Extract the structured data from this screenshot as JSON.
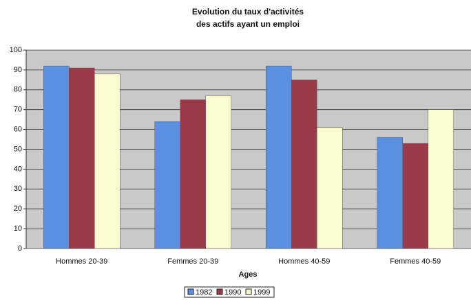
{
  "chart_data": {
    "type": "bar",
    "title": [
      "Evolution du taux d'activités",
      "des actifs ayant un emploi"
    ],
    "xlabel": "Ages",
    "categories": [
      "Hommes 20-39",
      "Femmes 20-39",
      "Hommes 40-59",
      "Femmes 40-59"
    ],
    "series": [
      {
        "name": "1982",
        "color": "#5b8fe0",
        "values": [
          92,
          64,
          92,
          56
        ]
      },
      {
        "name": "1990",
        "color": "#9b3b4a",
        "values": [
          91,
          75,
          85,
          53
        ]
      },
      {
        "name": "1999",
        "color": "#fbfbd0",
        "values": [
          88,
          77,
          61,
          70
        ]
      }
    ],
    "ylim": [
      0,
      100
    ],
    "yticks": [
      0,
      10,
      20,
      30,
      40,
      50,
      60,
      70,
      80,
      90,
      100
    ],
    "grid": true,
    "legend": "bottom"
  }
}
